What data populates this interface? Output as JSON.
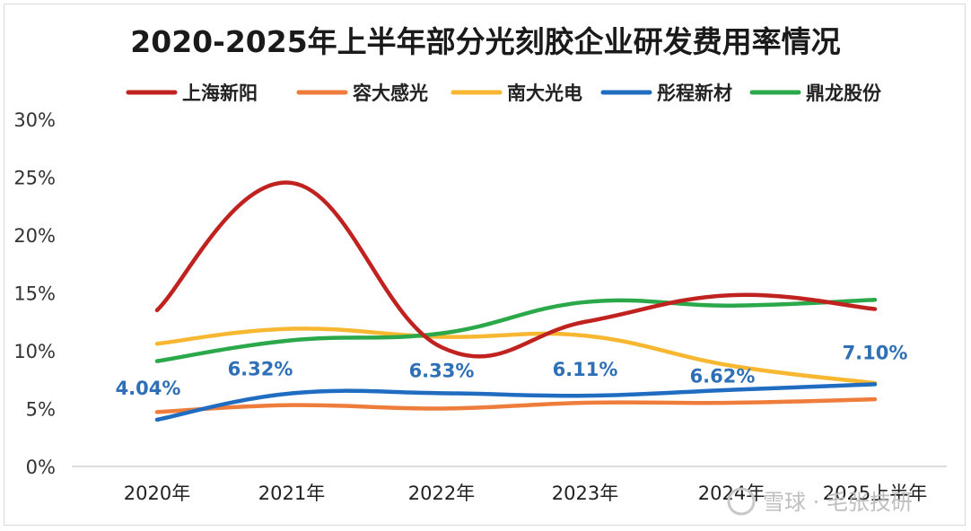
{
  "chart_data": {
    "type": "line",
    "title": "2020-2025年上半年部分光刻胶企业研发费用率情况",
    "categories": [
      "2020年",
      "2021年",
      "2022年",
      "2023年",
      "2024年",
      "2025上半年"
    ],
    "yticks": [
      "0%",
      "5%",
      "10%",
      "15%",
      "20%",
      "25%",
      "30%"
    ],
    "ylim": [
      0,
      30
    ],
    "grid": false,
    "legend_position": "top",
    "series": [
      {
        "name": "上海新阳",
        "color": "#c0231f",
        "values": [
          13.5,
          24.5,
          10.3,
          12.5,
          14.8,
          13.6
        ]
      },
      {
        "name": "容大感光",
        "color": "#ee7d3c",
        "values": [
          4.7,
          5.3,
          5.0,
          5.5,
          5.5,
          5.8
        ]
      },
      {
        "name": "南大光电",
        "color": "#f7b731",
        "values": [
          10.6,
          11.9,
          11.2,
          11.3,
          8.7,
          7.2
        ]
      },
      {
        "name": "彤程新材",
        "color": "#1f6cc1",
        "values": [
          4.04,
          6.32,
          6.33,
          6.11,
          6.62,
          7.1
        ]
      },
      {
        "name": "鼎龙股份",
        "color": "#2aa84a",
        "values": [
          9.1,
          10.9,
          11.5,
          14.2,
          13.9,
          14.4
        ]
      }
    ],
    "data_labels": {
      "series": "彤程新材",
      "labels": [
        "4.04%",
        "6.32%",
        "6.33%",
        "6.11%",
        "6.62%",
        "7.10%"
      ]
    },
    "watermark": "雪球 · 毛张技研"
  }
}
